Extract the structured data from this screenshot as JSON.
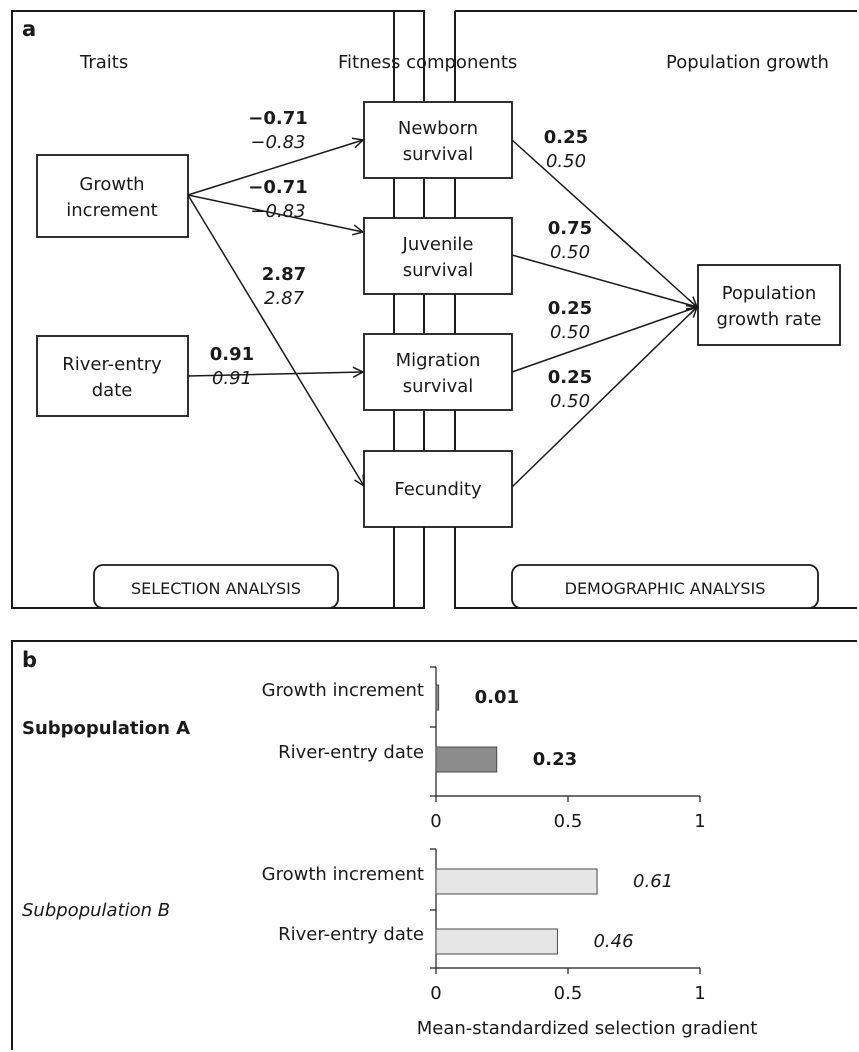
{
  "panel_a": {
    "letter": "a",
    "headers": {
      "traits": "Traits",
      "fitness": "Fitness components",
      "population": "Population growth"
    },
    "traits": [
      {
        "id": "growth",
        "lines": [
          "Growth",
          "increment"
        ]
      },
      {
        "id": "river",
        "lines": [
          "River-entry",
          "date"
        ]
      }
    ],
    "fitness_components": [
      {
        "id": "newborn",
        "lines": [
          "Newborn",
          "survival"
        ]
      },
      {
        "id": "juvenile",
        "lines": [
          "Juvenile",
          "survival"
        ]
      },
      {
        "id": "migration",
        "lines": [
          "Migration",
          "survival"
        ]
      },
      {
        "id": "fecundity",
        "lines": [
          "Fecundity"
        ]
      }
    ],
    "outcome": {
      "id": "popgrowth",
      "lines": [
        "Population",
        "growth rate"
      ]
    },
    "selection_coefficients": [
      {
        "from": "growth",
        "to": "newborn",
        "bold": "−0.71",
        "italic": "−0.83"
      },
      {
        "from": "growth",
        "to": "juvenile",
        "bold": "−0.71",
        "italic": "−0.83"
      },
      {
        "from": "growth",
        "to": "fecundity",
        "bold": "2.87",
        "italic": "2.87"
      },
      {
        "from": "river",
        "to": "migration",
        "bold": "0.91",
        "italic": "0.91"
      }
    ],
    "demographic_coefficients": [
      {
        "from": "newborn",
        "bold": "0.25",
        "italic": "0.50"
      },
      {
        "from": "juvenile",
        "bold": "0.75",
        "italic": "0.50"
      },
      {
        "from": "migration",
        "bold": "0.25",
        "italic": "0.50"
      },
      {
        "from": "fecundity",
        "bold": "0.25",
        "italic": "0.50"
      }
    ],
    "footer_left": "SELECTION ANALYSIS",
    "footer_right": "DEMOGRAPHIC ANALYSIS"
  },
  "panel_b": {
    "letter": "b",
    "xlabel": "Mean-standardized selection gradient",
    "colors": {
      "subpop_a": "#8c8c8c",
      "subpop_b": "#e6e6e6"
    }
  },
  "chart_data": {
    "type": "bar",
    "orientation": "horizontal",
    "title": "",
    "xlabel": "Mean-standardized selection gradient",
    "xlim": [
      0,
      1
    ],
    "xticks": [
      "0",
      "0.5",
      "1"
    ],
    "groups": [
      {
        "name": "Subpopulation A",
        "style": "bold",
        "categories": [
          "Growth increment",
          "River-entry date"
        ],
        "values": [
          0.01,
          0.23
        ],
        "labels": [
          "0.01",
          "0.23"
        ]
      },
      {
        "name": "Subpopulation B",
        "style": "italic",
        "categories": [
          "Growth increment",
          "River-entry date"
        ],
        "values": [
          0.61,
          0.46
        ],
        "labels": [
          "0.61",
          "0.46"
        ]
      }
    ]
  }
}
